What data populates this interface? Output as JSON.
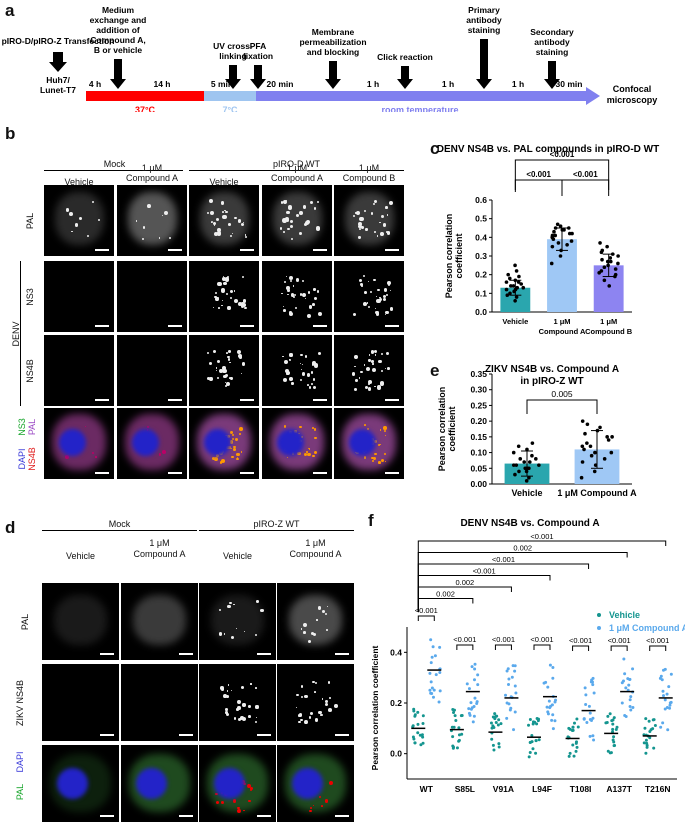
{
  "panel_a": {
    "label": "a",
    "transfection": "pIRO-D/pIRO-Z Transfection",
    "cells": [
      "Huh7/",
      "Lunet-T7"
    ],
    "steps": [
      {
        "text": [
          "Medium",
          "exchange and",
          "addition of",
          "Compound A,",
          "B or vehicle"
        ]
      },
      {
        "text": [
          "UV cross-",
          "linking"
        ]
      },
      {
        "text": [
          "PFA",
          "fixation"
        ]
      },
      {
        "text": [
          "Membrane",
          "permeabilization",
          "and blocking"
        ]
      },
      {
        "text": [
          "Click reaction"
        ]
      },
      {
        "text": [
          "Primary",
          "antibody",
          "staining"
        ]
      },
      {
        "text": [
          "Secondary",
          "antibody",
          "staining"
        ]
      }
    ],
    "durations": [
      "4 h",
      "14 h",
      "5 min",
      "20 min",
      "1 h",
      "1 h",
      "1 h",
      "30 min"
    ],
    "temps": [
      {
        "label": "37°C",
        "color": "#ff0000"
      },
      {
        "label": "7°C",
        "color": "#9fc5f0"
      },
      {
        "label": "room temperature",
        "color": "#8080ef"
      }
    ],
    "end": [
      "Confocal",
      "microscopy"
    ]
  },
  "panel_b": {
    "label": "b",
    "groups": [
      "Mock",
      "pIRO-D WT"
    ],
    "columns": [
      [
        "Vehicle"
      ],
      [
        "1 μM",
        "Compound A"
      ],
      [
        "Vehicle"
      ],
      [
        "1 μM",
        "Compound A"
      ],
      [
        "1 μM",
        "Compound B"
      ]
    ],
    "rows": [
      "PAL",
      "NS3",
      "NS4B"
    ],
    "denv": "DENV",
    "merge_labels": [
      {
        "text": "NS3",
        "color": "#17a52b"
      },
      {
        "text": "PAL",
        "color": "#9b49c5"
      },
      {
        "text": "DAPI",
        "color": "#3a3ad9"
      },
      {
        "text": "NS4B",
        "color": "#e01a1a"
      }
    ]
  },
  "panel_c": {
    "label": "c",
    "chart_data": {
      "type": "bar",
      "title": "DENV NS4B vs. PAL compounds in pIRO-D WT",
      "ylabel": "Pearson correlation coefficient",
      "categories": [
        [
          "Vehicle"
        ],
        [
          "1 μM",
          "Compound A"
        ],
        [
          "1 μM",
          "Compound B"
        ]
      ],
      "values": [
        0.13,
        0.39,
        0.25
      ],
      "errors": [
        0.04,
        0.06,
        0.06
      ],
      "colors": [
        "#2aa6ae",
        "#9fc8f5",
        "#8d84f1"
      ],
      "ylim": [
        0,
        0.6
      ],
      "yticks": [
        "0.0",
        "0.1",
        "0.2",
        "0.3",
        "0.4",
        "0.5",
        "0.6"
      ],
      "points": [
        [
          0.06,
          0.08,
          0.09,
          0.1,
          0.11,
          0.12,
          0.12,
          0.13,
          0.13,
          0.14,
          0.14,
          0.15,
          0.16,
          0.16,
          0.17,
          0.18,
          0.19,
          0.2,
          0.22,
          0.25
        ],
        [
          0.26,
          0.3,
          0.33,
          0.35,
          0.36,
          0.37,
          0.38,
          0.39,
          0.4,
          0.41,
          0.42,
          0.42,
          0.43,
          0.44,
          0.44,
          0.45,
          0.46,
          0.47,
          0.45,
          0.41
        ],
        [
          0.14,
          0.17,
          0.19,
          0.2,
          0.21,
          0.22,
          0.23,
          0.24,
          0.25,
          0.26,
          0.27,
          0.28,
          0.29,
          0.3,
          0.31,
          0.32,
          0.33,
          0.35,
          0.37,
          0.27
        ]
      ],
      "significance": [
        {
          "pair": [
            0,
            1
          ],
          "label": "<0.001"
        },
        {
          "pair": [
            1,
            2
          ],
          "label": "<0.001"
        },
        {
          "pair": [
            0,
            2
          ],
          "label": "<0.001"
        }
      ]
    }
  },
  "panel_e": {
    "label": "e",
    "chart_data": {
      "type": "bar",
      "title": [
        "ZIKV NS4B vs. Compound A",
        "in pIRO-Z  WT"
      ],
      "ylabel": "Pearson correlation coefficient",
      "categories": [
        "Vehicle",
        "1 μM Compound A"
      ],
      "values": [
        0.065,
        0.11
      ],
      "errors": [
        0.04,
        0.06
      ],
      "colors": [
        "#2aa6ae",
        "#9fc8f5"
      ],
      "ylim": [
        0,
        0.35
      ],
      "yticks": [
        "0.00",
        "0.05",
        "0.10",
        "0.15",
        "0.20",
        "0.25",
        "0.30",
        "0.35"
      ],
      "points": [
        [
          0.01,
          0.02,
          0.03,
          0.04,
          0.05,
          0.05,
          0.06,
          0.06,
          0.07,
          0.07,
          0.08,
          0.08,
          0.09,
          0.1,
          0.11,
          0.12,
          0.13,
          0.06,
          0.05,
          0.04
        ],
        [
          0.02,
          0.04,
          0.06,
          0.07,
          0.08,
          0.09,
          0.1,
          0.11,
          0.12,
          0.13,
          0.14,
          0.15,
          0.16,
          0.17,
          0.18,
          0.19,
          0.1,
          0.12,
          0.15,
          0.2
        ]
      ],
      "significance": [
        {
          "pair": [
            0,
            1
          ],
          "label": "0.005"
        }
      ]
    }
  },
  "panel_d": {
    "label": "d",
    "groups": [
      "Mock",
      "pIRO-Z WT"
    ],
    "columns": [
      [
        "Vehicle"
      ],
      [
        "1 μM",
        "Compound A"
      ],
      [
        "Vehicle"
      ],
      [
        "1 μM",
        "Compound A"
      ]
    ],
    "rows": [
      "PAL",
      "ZIKV NS4B"
    ],
    "merge_labels": [
      {
        "text": "DAPI",
        "color": "#3a3ad9"
      },
      {
        "text": "PAL",
        "color": "#17a52b"
      },
      {
        "text": "ZIKV NS4B",
        "color": "#e01a1a"
      }
    ]
  },
  "panel_f": {
    "label": "f",
    "chart_data": {
      "type": "scatter",
      "title": "DENV NS4B vs. Compound A",
      "ylabel": "Pearson correlation coefficient",
      "categories": [
        "WT",
        "S85L",
        "V91A",
        "L94F",
        "T108I",
        "A137T",
        "T216N"
      ],
      "ylim": [
        -0.1,
        0.5
      ],
      "yticks": [
        "0.0",
        "0.2",
        "0.4"
      ],
      "series": [
        {
          "name": "Vehicle",
          "color": "#14958f",
          "medians": [
            0.1,
            0.095,
            0.085,
            0.065,
            0.06,
            0.08,
            0.07
          ]
        },
        {
          "name": "1 μM Compound A",
          "color": "#5aa9ec",
          "medians": [
            0.33,
            0.245,
            0.22,
            0.225,
            0.17,
            0.245,
            0.22
          ]
        }
      ],
      "pair_labels": [
        "<0.001",
        "<0.001",
        "<0.001",
        "<0.001",
        "<0.001",
        "<0.001",
        "<0.001"
      ],
      "wt_comparisons": [
        "0.002",
        "<0.001",
        "0.002",
        "<0.001",
        "<0.001",
        "0.002",
        "<0.001"
      ]
    }
  }
}
